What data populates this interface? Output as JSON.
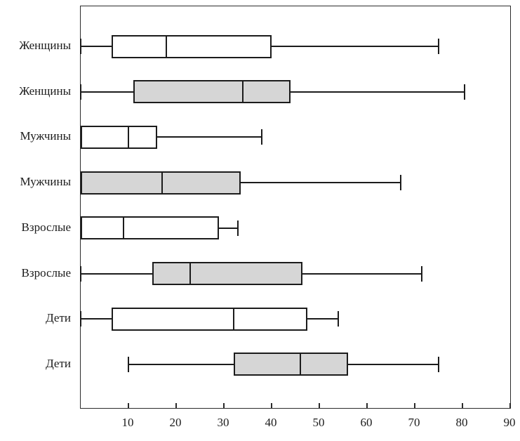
{
  "chart_data": {
    "type": "boxplot",
    "orientation": "horizontal",
    "title": "",
    "xlabel": "",
    "ylabel": "",
    "xlim": [
      0,
      90
    ],
    "xticks": [
      10,
      20,
      30,
      40,
      50,
      60,
      70,
      80,
      90
    ],
    "grid": false,
    "legend": null,
    "colors": {
      "line": "#1c1c1c",
      "frame": "#2b2b2b",
      "box_white": "#ffffff",
      "box_gray": "#d6d6d6",
      "background": "#ffffff"
    },
    "series": [
      {
        "name": "Женщины",
        "fill": "white",
        "values": {
          "min": 0,
          "q1": 6.5,
          "median": 18,
          "q3": 40,
          "max": 75
        }
      },
      {
        "name": "Женщины",
        "fill": "gray",
        "values": {
          "min": 0,
          "q1": 11,
          "median": 34,
          "q3": 44,
          "max": 80.5
        }
      },
      {
        "name": "Мужчины",
        "fill": "white",
        "values": {
          "min": 0,
          "q1": 0,
          "median": 10,
          "q3": 16,
          "max": 38
        }
      },
      {
        "name": "Мужчины",
        "fill": "gray",
        "values": {
          "min": 0,
          "q1": 0,
          "median": 17,
          "q3": 33.5,
          "max": 67
        }
      },
      {
        "name": "Взрослые",
        "fill": "white",
        "values": {
          "min": 0,
          "q1": 0,
          "median": 9,
          "q3": 29,
          "max": 33
        }
      },
      {
        "name": "Взрослые",
        "fill": "gray",
        "values": {
          "min": 0,
          "q1": 15,
          "median": 23,
          "q3": 46.5,
          "max": 71.5
        }
      },
      {
        "name": "Дети",
        "fill": "white",
        "values": {
          "min": 0,
          "q1": 6.5,
          "median": 32,
          "q3": 47.5,
          "max": 54
        }
      },
      {
        "name": "Дети",
        "fill": "gray",
        "values": {
          "min": 10,
          "q1": 32,
          "median": 46,
          "q3": 56,
          "max": 75
        }
      }
    ]
  }
}
